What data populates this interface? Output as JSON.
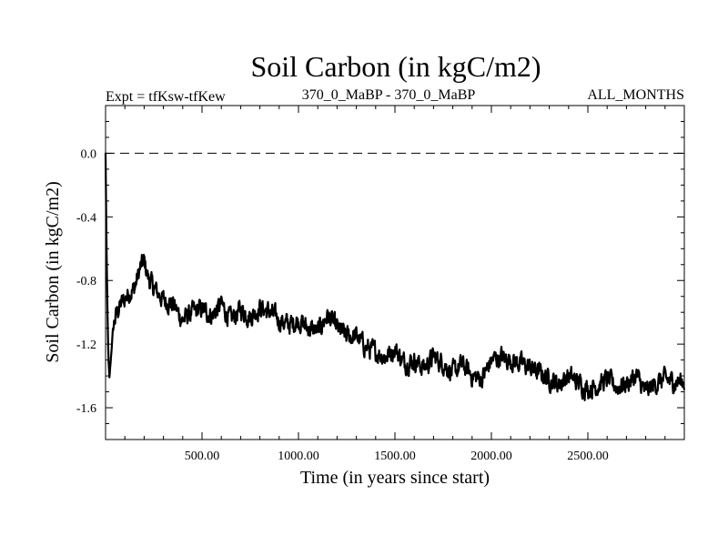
{
  "chart_data": {
    "type": "line",
    "title": "Soil Carbon (in kgC/m2)",
    "subtitle_left": "Expt = tfKsw-tfKew",
    "subtitle_center": "370_0_MaBP - 370_0_MaBP",
    "subtitle_right": "ALL_MONTHS",
    "xlabel": "Time (in years since start)",
    "ylabel": "Soil Carbon (in kgC/m2)",
    "xlim": [
      0,
      3000
    ],
    "ylim": [
      -1.8,
      0.3
    ],
    "xticks": [
      500,
      1000,
      1500,
      2000,
      2500
    ],
    "xtick_labels": [
      "500.00",
      "1000.00",
      "1500.00",
      "2000.00",
      "2500.00"
    ],
    "yticks": [
      0.0,
      -0.4,
      -0.8,
      -1.2,
      -1.6
    ],
    "ytick_labels": [
      "0.0",
      "-0.4",
      "-0.8",
      "-1.2",
      "-1.6"
    ],
    "reference_line": {
      "y": 0.0,
      "style": "dashed"
    },
    "series": [
      {
        "name": "Soil Carbon",
        "x": [
          0,
          5,
          10,
          15,
          20,
          30,
          40,
          60,
          80,
          100,
          120,
          150,
          180,
          200,
          220,
          250,
          300,
          350,
          400,
          450,
          500,
          550,
          600,
          650,
          700,
          750,
          800,
          850,
          900,
          950,
          1000,
          1050,
          1100,
          1150,
          1200,
          1250,
          1300,
          1350,
          1400,
          1450,
          1500,
          1550,
          1600,
          1650,
          1700,
          1750,
          1800,
          1850,
          1900,
          1950,
          2000,
          2050,
          2100,
          2150,
          2200,
          2250,
          2300,
          2350,
          2400,
          2450,
          2500,
          2550,
          2600,
          2650,
          2700,
          2750,
          2800,
          2850,
          2900,
          2950,
          3000
        ],
        "values": [
          0.0,
          -0.6,
          -1.0,
          -1.3,
          -1.42,
          -1.25,
          -1.08,
          -1.0,
          -0.95,
          -0.92,
          -0.88,
          -0.85,
          -0.72,
          -0.68,
          -0.78,
          -0.85,
          -0.92,
          -0.95,
          -1.05,
          -1.0,
          -0.98,
          -1.02,
          -0.95,
          -1.05,
          -0.98,
          -1.03,
          -0.97,
          -1.0,
          -1.05,
          -1.08,
          -1.05,
          -1.1,
          -1.12,
          -1.02,
          -1.1,
          -1.15,
          -1.15,
          -1.22,
          -1.25,
          -1.28,
          -1.23,
          -1.32,
          -1.3,
          -1.35,
          -1.28,
          -1.32,
          -1.38,
          -1.33,
          -1.4,
          -1.42,
          -1.3,
          -1.28,
          -1.3,
          -1.32,
          -1.35,
          -1.38,
          -1.42,
          -1.45,
          -1.4,
          -1.44,
          -1.48,
          -1.46,
          -1.42,
          -1.47,
          -1.45,
          -1.4,
          -1.5,
          -1.45,
          -1.42,
          -1.44,
          -1.43
        ]
      }
    ]
  }
}
